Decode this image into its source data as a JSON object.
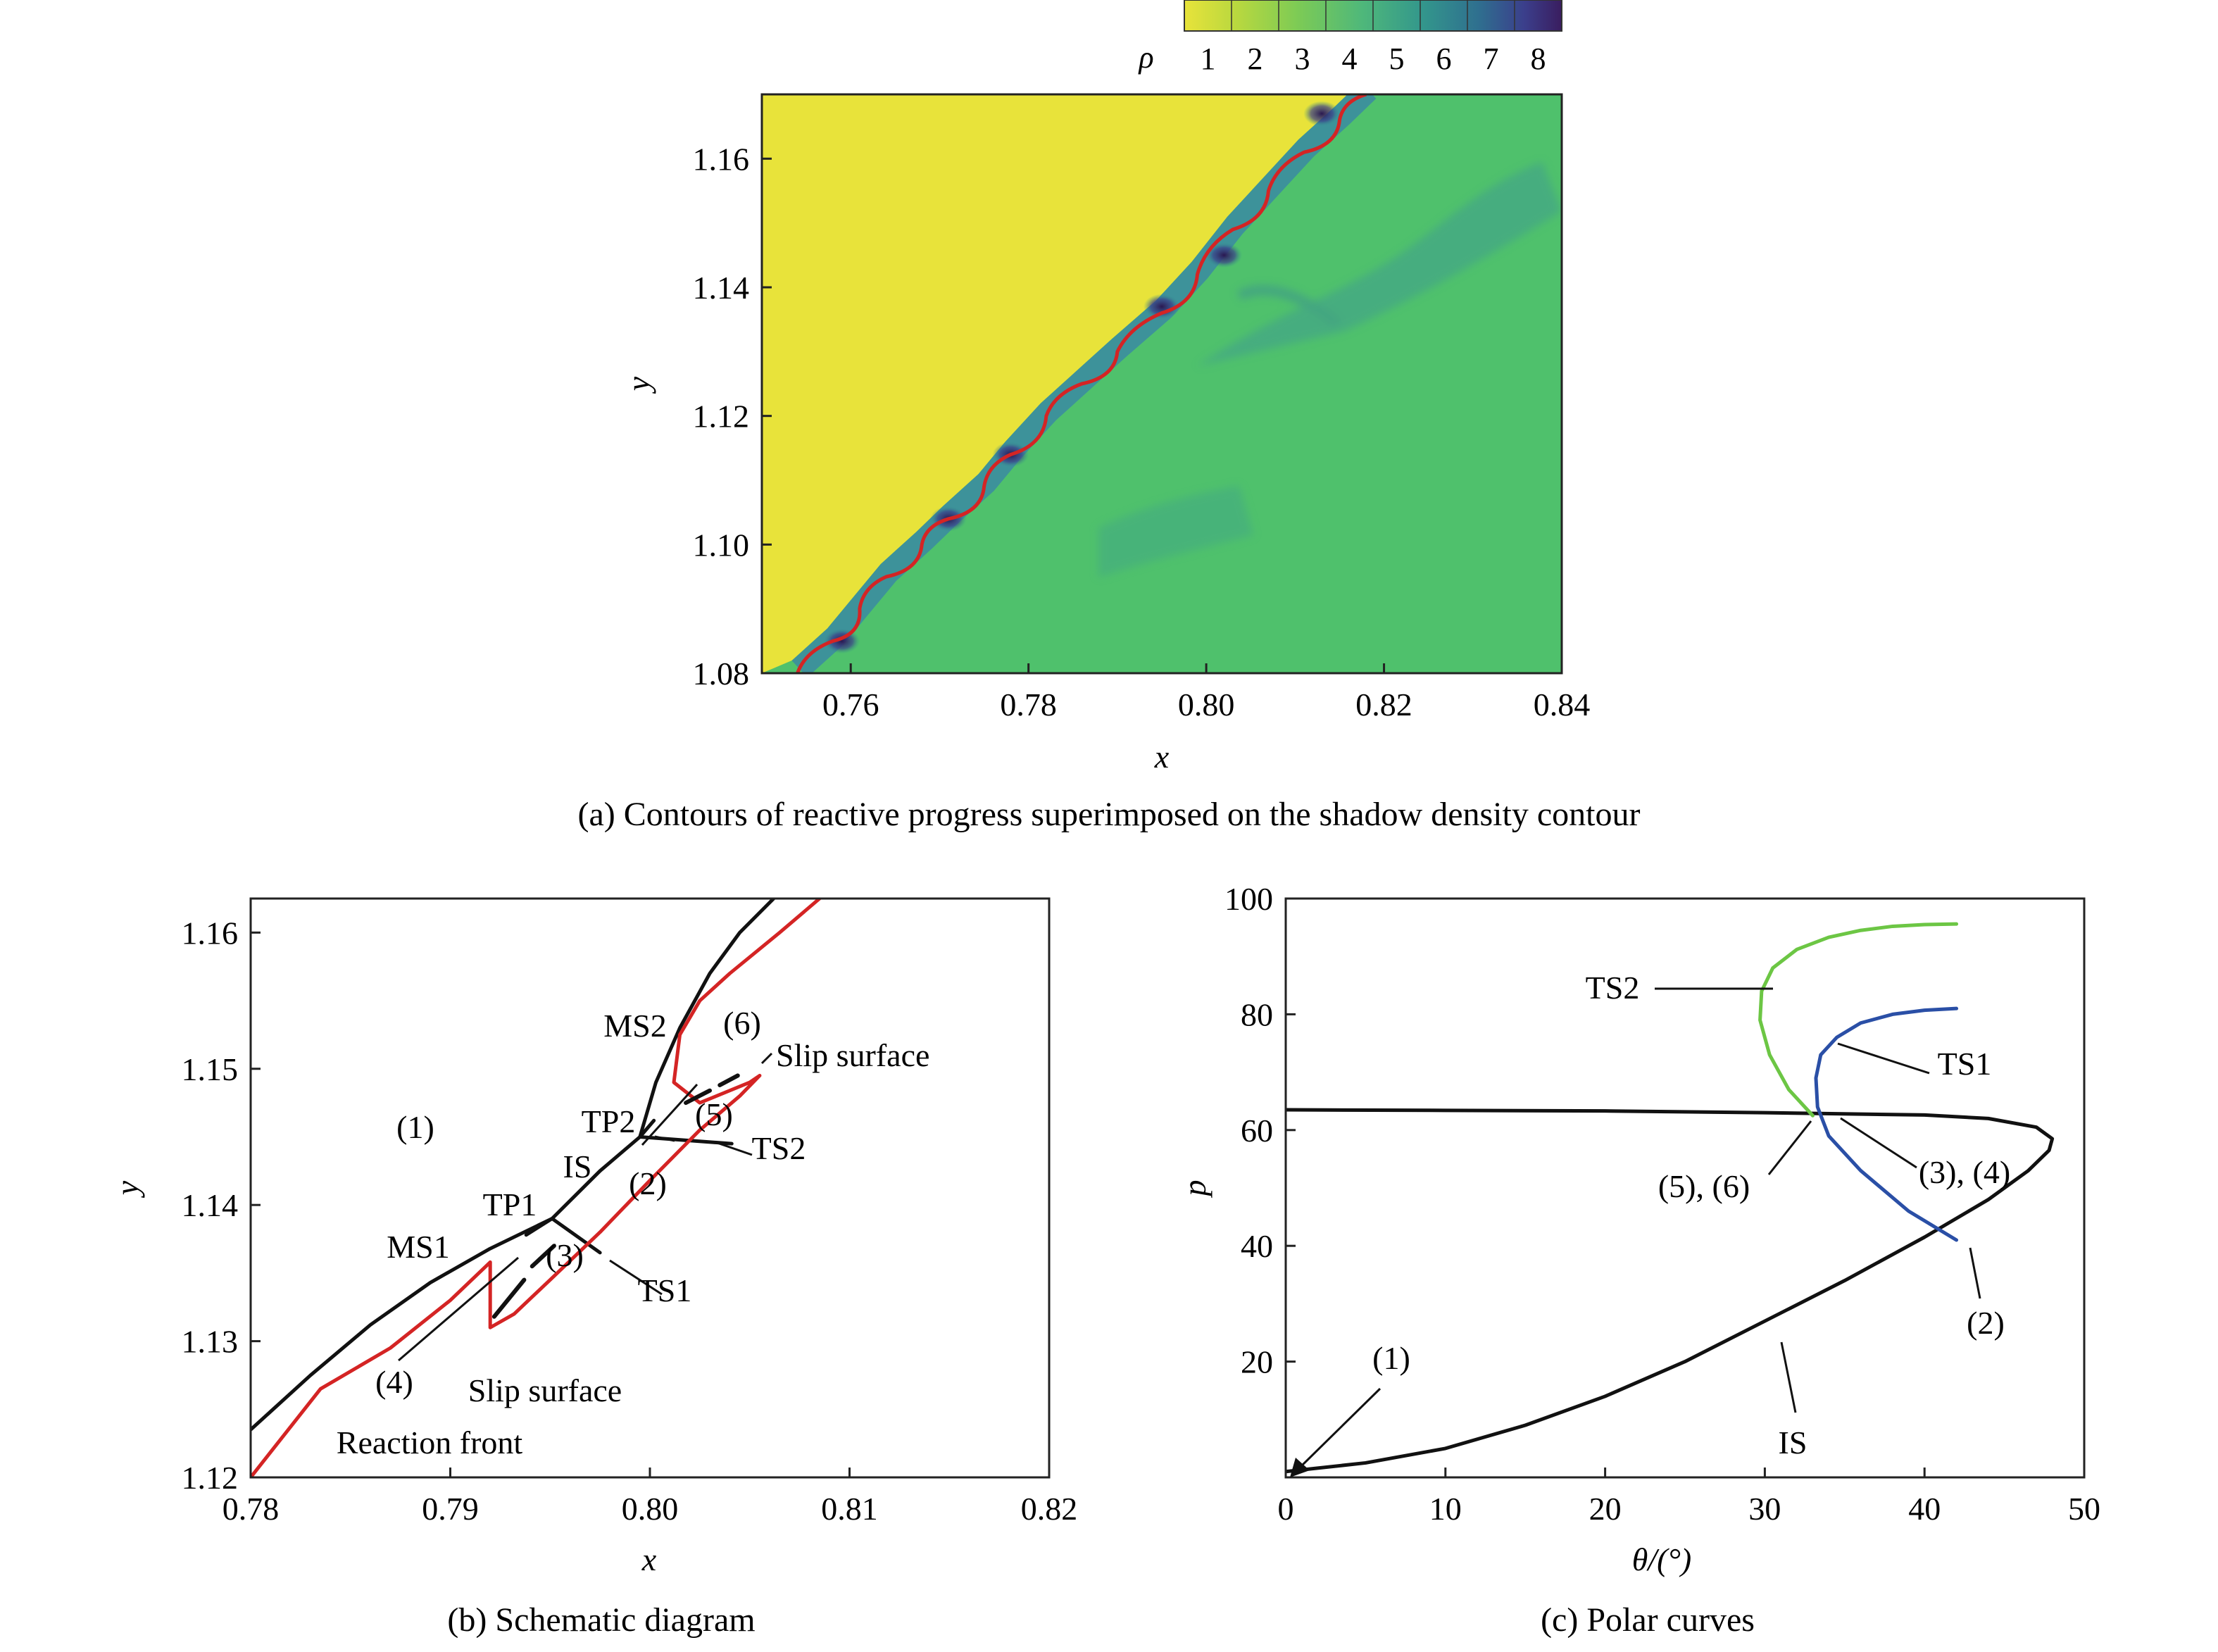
{
  "figure": {
    "captions": {
      "a": "(a) Contours of reactive progress superimposed on the shadow density contour",
      "b": "(b) Schematic diagram",
      "c": "(c) Polar curves"
    }
  },
  "colors": {
    "unburned": "#e8e33a",
    "burned": "#4fc16c",
    "reaction_front": "#d42424",
    "shock_black": "#111111",
    "polar_ts2": "#6cc644",
    "polar_ts1": "#2a4fa6",
    "polar_is": "#111111"
  },
  "chart_data": [
    {
      "id": "a",
      "type": "heatmap",
      "title": "",
      "xlabel": "x",
      "ylabel": "y",
      "xlim": [
        0.75,
        0.84
      ],
      "ylim": [
        1.08,
        1.17
      ],
      "xticks": [
        "0.76",
        "0.78",
        "0.80",
        "0.82",
        "0.84"
      ],
      "yticks": [
        "1.08",
        "1.10",
        "1.12",
        "1.14",
        "1.16"
      ],
      "colorbar": {
        "label": "ρ",
        "ticks": [
          "1",
          "2",
          "3",
          "4",
          "5",
          "6",
          "7",
          "8"
        ],
        "colors": [
          "#e8e33a",
          "#b8d83f",
          "#7dcb55",
          "#4fb87a",
          "#33978c",
          "#2f6f8f",
          "#3b3f8c",
          "#3a1d5f"
        ],
        "placement": "top-right"
      },
      "front_x": [
        0.754,
        0.758,
        0.761,
        0.764,
        0.768,
        0.771,
        0.775,
        0.778,
        0.782,
        0.786,
        0.79,
        0.795,
        0.799,
        0.803,
        0.807,
        0.811,
        0.815,
        0.818
      ],
      "front_y": [
        1.08,
        1.085,
        1.09,
        1.095,
        1.1,
        1.104,
        1.109,
        1.114,
        1.12,
        1.125,
        1.13,
        1.136,
        1.142,
        1.149,
        1.155,
        1.161,
        1.166,
        1.17
      ],
      "triple_points_x": [
        0.759,
        0.771,
        0.778,
        0.795,
        0.802,
        0.813
      ],
      "triple_points_y": [
        1.085,
        1.104,
        1.114,
        1.137,
        1.145,
        1.167
      ]
    },
    {
      "id": "b",
      "type": "line",
      "title": "",
      "xlabel": "x",
      "ylabel": "y",
      "xlim": [
        0.78,
        0.82
      ],
      "ylim": [
        1.12,
        1.1625
      ],
      "xticks": [
        "0.78",
        "0.79",
        "0.80",
        "0.81",
        "0.82"
      ],
      "yticks": [
        "1.12",
        "1.13",
        "1.14",
        "1.15",
        "1.16"
      ],
      "series": [
        {
          "role": "ms1-is-ms2",
          "x": [
            0.78,
            0.783,
            0.786,
            0.789,
            0.792,
            0.7951,
            0.7975,
            0.7995,
            0.8003,
            0.8015,
            0.803,
            0.8045,
            0.8062
          ],
          "y": [
            1.1235,
            1.1275,
            1.1312,
            1.1343,
            1.1368,
            1.139,
            1.1425,
            1.145,
            1.149,
            1.153,
            1.157,
            1.16,
            1.1625
          ]
        },
        {
          "role": "ts1",
          "x": [
            0.7951,
            0.7975
          ],
          "y": [
            1.139,
            1.1365
          ]
        },
        {
          "role": "ts2",
          "x": [
            0.7995,
            0.8041
          ],
          "y": [
            1.145,
            1.1445
          ]
        },
        {
          "role": "tp1-tick",
          "x": [
            0.7938,
            0.7951
          ],
          "y": [
            1.1378,
            1.139
          ]
        },
        {
          "role": "ms2-base",
          "x": [
            0.7995,
            0.8002
          ],
          "y": [
            1.145,
            1.1462
          ]
        },
        {
          "role": "reaction-front",
          "x": [
            0.78,
            0.7835,
            0.787,
            0.79,
            0.792,
            0.792,
            0.7932,
            0.795,
            0.7975,
            0.8,
            0.8025,
            0.8045,
            0.8055,
            0.805,
            0.8025,
            0.8012,
            0.8015,
            0.8025,
            0.804,
            0.8065,
            0.8085
          ],
          "y": [
            1.12,
            1.1265,
            1.1295,
            1.133,
            1.1358,
            1.131,
            1.132,
            1.1345,
            1.138,
            1.1418,
            1.1455,
            1.148,
            1.1495,
            1.149,
            1.1475,
            1.149,
            1.1525,
            1.155,
            1.157,
            1.16,
            1.1625
          ]
        },
        {
          "role": "slip-surface-lower",
          "x": [
            0.7922,
            0.7937
          ],
          "y": [
            1.1318,
            1.1345
          ]
        },
        {
          "role": "slip-surface-lower-b",
          "x": [
            0.7941,
            0.7952
          ],
          "y": [
            1.1355,
            1.137
          ]
        },
        {
          "role": "slip-surface-upper",
          "x": [
            0.8018,
            0.803
          ],
          "y": [
            1.1475,
            1.1484
          ]
        },
        {
          "role": "slip-surface-upper-b",
          "x": [
            0.8035,
            0.8044
          ],
          "y": [
            1.1488,
            1.1495
          ]
        }
      ],
      "labels": [
        "(1)",
        "(2)",
        "(3)",
        "(4)",
        "(5)",
        "(6)",
        "MS1",
        "MS2",
        "TP1",
        "TP2",
        "IS",
        "TS1",
        "TS2",
        "Slip surface",
        "Slip surface",
        "Reaction front"
      ]
    },
    {
      "id": "c",
      "type": "line",
      "title": "",
      "xlabel": "θ/(°)",
      "ylabel": "p",
      "xlim": [
        0,
        50
      ],
      "ylim": [
        0,
        100
      ],
      "xticks": [
        "0",
        "10",
        "20",
        "30",
        "40",
        "50"
      ],
      "yticks": [
        "20",
        "40",
        "60",
        "80",
        "100"
      ],
      "series": [
        {
          "name": "IS",
          "x": [
            0,
            5,
            10,
            15,
            20,
            25,
            30,
            35,
            40,
            44,
            46.5,
            47.8,
            48,
            47,
            44,
            40,
            30,
            20,
            10,
            0
          ],
          "y": [
            1,
            2.5,
            5,
            9,
            14,
            20,
            27,
            34,
            41.5,
            48,
            53,
            56.5,
            58.5,
            60.5,
            62,
            62.6,
            63,
            63.3,
            63.4,
            63.5
          ]
        },
        {
          "name": "TS1",
          "x": [
            42,
            39,
            36,
            34,
            33.3,
            33.2,
            33.5,
            34.5,
            36,
            38,
            40,
            42
          ],
          "y": [
            41,
            46,
            53,
            59,
            64,
            69,
            73,
            76,
            78.5,
            80,
            80.7,
            81
          ]
        },
        {
          "name": "TS2",
          "x": [
            33,
            31.5,
            30.3,
            29.7,
            29.8,
            30.5,
            32,
            34,
            36,
            38,
            40,
            42
          ],
          "y": [
            62.5,
            67,
            73,
            79,
            84,
            88,
            91.2,
            93.3,
            94.5,
            95.2,
            95.5,
            95.6
          ]
        }
      ],
      "labels": [
        "TS2",
        "TS1",
        "(5), (6)",
        "(3), (4)",
        "(2)",
        "(1)",
        "IS"
      ]
    }
  ]
}
